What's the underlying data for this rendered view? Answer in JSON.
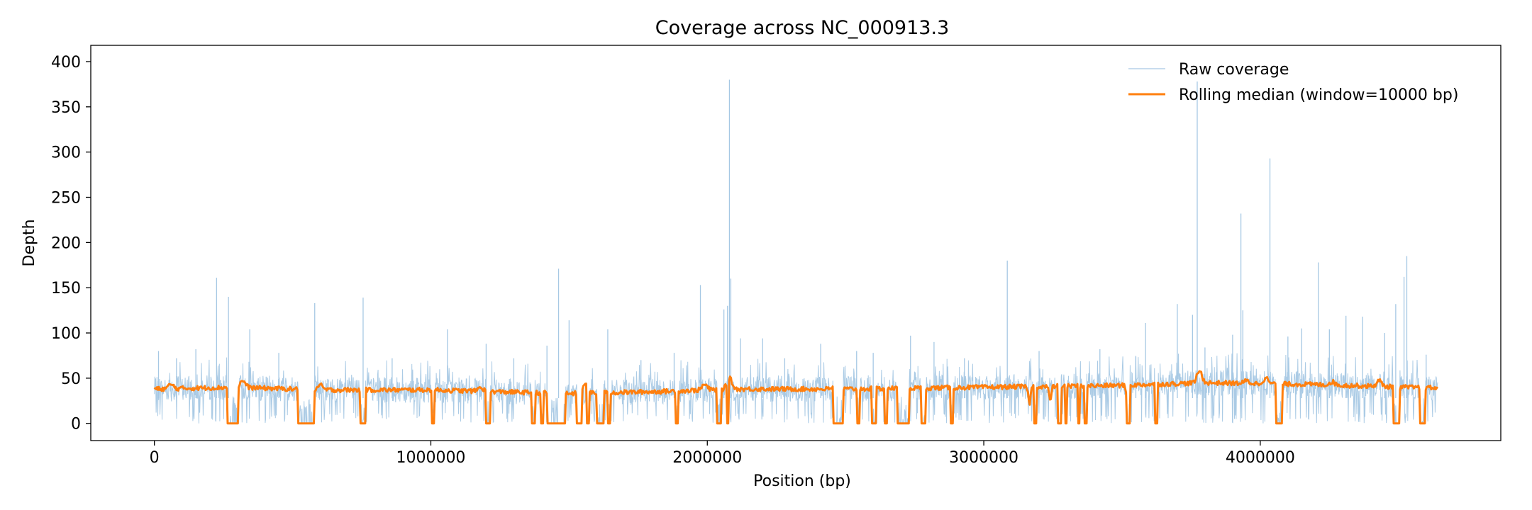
{
  "chart_data": {
    "type": "line",
    "title": "Coverage across NC_000913.3",
    "xlabel": "Position (bp)",
    "ylabel": "Depth",
    "xlim": [
      -230000,
      4870000
    ],
    "ylim": [
      -19,
      418
    ],
    "x_ticks": [
      0,
      1000000,
      2000000,
      3000000,
      4000000
    ],
    "x_tick_labels": [
      "0",
      "1000000",
      "2000000",
      "3000000",
      "4000000"
    ],
    "y_ticks": [
      0,
      50,
      100,
      150,
      200,
      250,
      300,
      350,
      400
    ],
    "y_tick_labels": [
      "0",
      "50",
      "100",
      "150",
      "200",
      "250",
      "300",
      "350",
      "400"
    ],
    "grid": false,
    "legend_position": "top-right",
    "genome_length": 4641652,
    "series": [
      {
        "name": "Raw coverage",
        "color": "#a6c8e4",
        "style": "thin",
        "spikes": [
          [
            15000,
            80
          ],
          [
            80000,
            72
          ],
          [
            150000,
            82
          ],
          [
            225000,
            161
          ],
          [
            268000,
            140
          ],
          [
            345000,
            104
          ],
          [
            450000,
            78
          ],
          [
            580000,
            133
          ],
          [
            755000,
            139
          ],
          [
            860000,
            72
          ],
          [
            1060000,
            104
          ],
          [
            1200000,
            88
          ],
          [
            1300000,
            72
          ],
          [
            1420000,
            86
          ],
          [
            1462000,
            171
          ],
          [
            1500000,
            114
          ],
          [
            1640000,
            104
          ],
          [
            1760000,
            70
          ],
          [
            1880000,
            78
          ],
          [
            1975000,
            153
          ],
          [
            2060000,
            126
          ],
          [
            2073000,
            130
          ],
          [
            2080000,
            380
          ],
          [
            2085000,
            160
          ],
          [
            2120000,
            94
          ],
          [
            2200000,
            94
          ],
          [
            2280000,
            72
          ],
          [
            2410000,
            88
          ],
          [
            2540000,
            80
          ],
          [
            2600000,
            78
          ],
          [
            2735000,
            97
          ],
          [
            2820000,
            90
          ],
          [
            2930000,
            72
          ],
          [
            3085000,
            180
          ],
          [
            3200000,
            80
          ],
          [
            3420000,
            82
          ],
          [
            3550000,
            74
          ],
          [
            3585000,
            111
          ],
          [
            3700000,
            132
          ],
          [
            3755000,
            120
          ],
          [
            3772000,
            378
          ],
          [
            3800000,
            84
          ],
          [
            3900000,
            98
          ],
          [
            3930000,
            232
          ],
          [
            3937000,
            125
          ],
          [
            4035000,
            293
          ],
          [
            4100000,
            96
          ],
          [
            4150000,
            105
          ],
          [
            4210000,
            178
          ],
          [
            4250000,
            104
          ],
          [
            4310000,
            119
          ],
          [
            4370000,
            118
          ],
          [
            4450000,
            100
          ],
          [
            4490000,
            132
          ],
          [
            4520000,
            162
          ],
          [
            4530000,
            185
          ],
          [
            4600000,
            76
          ]
        ]
      },
      {
        "name": "Rolling median (window=10000 bp)",
        "color": "#ff7f0e",
        "style": "thick",
        "baseline": [
          [
            0,
            38
          ],
          [
            300000,
            40
          ],
          [
            600000,
            37
          ],
          [
            1000000,
            37
          ],
          [
            1500000,
            33
          ],
          [
            1800000,
            35
          ],
          [
            2100000,
            38
          ],
          [
            2500000,
            38
          ],
          [
            3000000,
            40
          ],
          [
            3500000,
            42
          ],
          [
            3800000,
            45
          ],
          [
            4200000,
            43
          ],
          [
            4640000,
            39
          ]
        ],
        "bumps": [
          [
            60000,
            43
          ],
          [
            320000,
            47
          ],
          [
            600000,
            42
          ],
          [
            1180000,
            40
          ],
          [
            1560000,
            44
          ],
          [
            1990000,
            43
          ],
          [
            2080000,
            50
          ],
          [
            2470000,
            47
          ],
          [
            3780000,
            58
          ],
          [
            3950000,
            47
          ],
          [
            4020000,
            50
          ],
          [
            4260000,
            46
          ],
          [
            4430000,
            47
          ]
        ],
        "gaps": [
          [
            262000,
            305000
          ],
          [
            520000,
            580000
          ],
          [
            743000,
            763000
          ],
          [
            1003000,
            1012000
          ],
          [
            1200000,
            1215000
          ],
          [
            1364000,
            1376000
          ],
          [
            1398000,
            1408000
          ],
          [
            1420000,
            1488000
          ],
          [
            1528000,
            1547000
          ],
          [
            1562000,
            1572000
          ],
          [
            1601000,
            1625000
          ],
          [
            1638000,
            1650000
          ],
          [
            1885000,
            1895000
          ],
          [
            2035000,
            2052000
          ],
          [
            2070000,
            2076000
          ],
          [
            2455000,
            2492000
          ],
          [
            2540000,
            2552000
          ],
          [
            2594000,
            2612000
          ],
          [
            2640000,
            2652000
          ],
          [
            2686000,
            2730000
          ],
          [
            2774000,
            2790000
          ],
          [
            2880000,
            2890000
          ],
          [
            3180000,
            3190000
          ],
          [
            3266000,
            3280000
          ],
          [
            3295000,
            3302000
          ],
          [
            3340000,
            3348000
          ],
          [
            3362000,
            3372000
          ],
          [
            3515000,
            3528000
          ],
          [
            3618000,
            3630000
          ],
          [
            4055000,
            4080000
          ],
          [
            4480000,
            4505000
          ],
          [
            4576000,
            4598000
          ]
        ],
        "dips": [
          [
            3165000,
            22
          ],
          [
            3240000,
            25
          ],
          [
            3520000,
            20
          ]
        ]
      }
    ]
  }
}
